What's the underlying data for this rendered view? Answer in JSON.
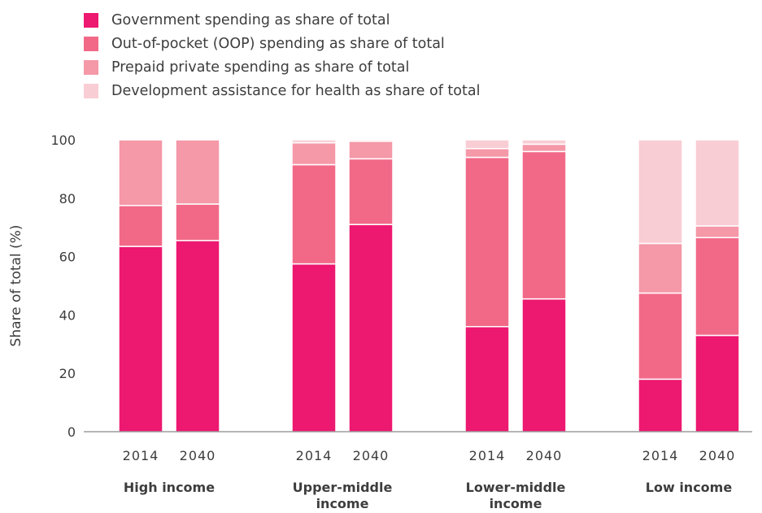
{
  "chart_data": {
    "type": "bar",
    "stacked": true,
    "ylabel": "Share of total (%)",
    "ylim": [
      0,
      100
    ],
    "yticks": [
      0,
      20,
      40,
      60,
      80,
      100
    ],
    "grid": false,
    "legend_position": "top-left",
    "groups": [
      {
        "label": "High income",
        "years": [
          "2014",
          "2040"
        ]
      },
      {
        "label": "Upper-middle income",
        "years": [
          "2014",
          "2040"
        ]
      },
      {
        "label": "Lower-middle income",
        "years": [
          "2014",
          "2040"
        ]
      },
      {
        "label": "Low income",
        "years": [
          "2014",
          "2040"
        ]
      }
    ],
    "series": [
      {
        "name": "Government spending as share of total",
        "color": "#ED1870",
        "values": [
          63.5,
          65.5,
          57.5,
          71.0,
          36.0,
          45.5,
          18.0,
          33.0
        ]
      },
      {
        "name": "Out-of-pocket (OOP) spending as share of total",
        "color": "#F26988",
        "values": [
          14.0,
          12.5,
          34.0,
          22.5,
          58.0,
          50.5,
          29.5,
          33.5
        ]
      },
      {
        "name": "Prepaid private spending as share of total",
        "color": "#F598A8",
        "values": [
          22.5,
          22.0,
          7.5,
          6.0,
          3.0,
          2.5,
          17.0,
          4.0
        ]
      },
      {
        "name": "Development assistance for health as share of total",
        "color": "#F9CDD4",
        "values": [
          0.0,
          0.0,
          1.0,
          0.5,
          3.0,
          1.5,
          35.5,
          29.5
        ]
      }
    ]
  }
}
